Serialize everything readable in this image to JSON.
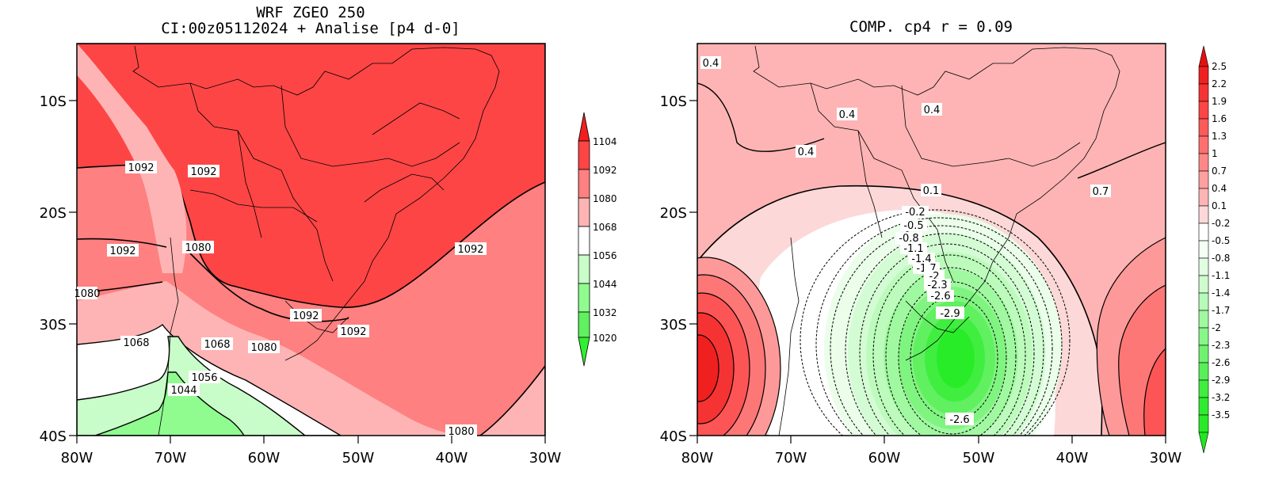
{
  "left_panel": {
    "title_line1": "WRF ZGEO 250",
    "title_line2": "CI:00z05112024 + Analise  [p4 d-0]",
    "x_ticks": [
      "80W",
      "70W",
      "60W",
      "50W",
      "40W",
      "30W"
    ],
    "y_ticks": [
      "10S",
      "20S",
      "30S",
      "40S"
    ],
    "colorbar_labels": [
      "1104",
      "1092",
      "1080",
      "1068",
      "1056",
      "1044",
      "1032",
      "1020"
    ],
    "contour_labels": [
      "1092",
      "1092",
      "1092",
      "1080",
      "1092",
      "1080",
      "1092",
      "1092",
      "1068",
      "1068",
      "1080",
      "1056",
      "1044",
      "1080"
    ]
  },
  "right_panel": {
    "title": "COMP. cp4  r =  0.09",
    "x_ticks": [
      "80W",
      "70W",
      "60W",
      "50W",
      "40W",
      "30W"
    ],
    "y_ticks": [
      "10S",
      "20S",
      "30S",
      "40S"
    ],
    "colorbar_labels": [
      "2.5",
      "2.2",
      "1.9",
      "1.6",
      "1.3",
      "1",
      "0.7",
      "0.4",
      "0.1",
      "-0.2",
      "-0.5",
      "-0.8",
      "-1.1",
      "-1.4",
      "-1.7",
      "-2",
      "-2.3",
      "-2.6",
      "-2.9",
      "-3.2",
      "-3.5"
    ],
    "contour_labels": [
      "0.4",
      "0.4",
      "0.4",
      "0.4",
      "0.1",
      "0.7",
      "-0.2",
      "-0.5",
      "-0.8",
      "-1.1",
      "-1.4",
      "-1.7",
      "-2",
      "-2.3",
      "-2.6",
      "-2.9",
      "-2.6"
    ]
  },
  "colors": {
    "red_dark": "#f02020",
    "red_mid": "#fd4545",
    "red_light": "#fe8080",
    "pink": "#feb4b4",
    "white": "#ffffff",
    "green_pale": "#c8fcc8",
    "green_light": "#90fc90",
    "green": "#30f030"
  }
}
